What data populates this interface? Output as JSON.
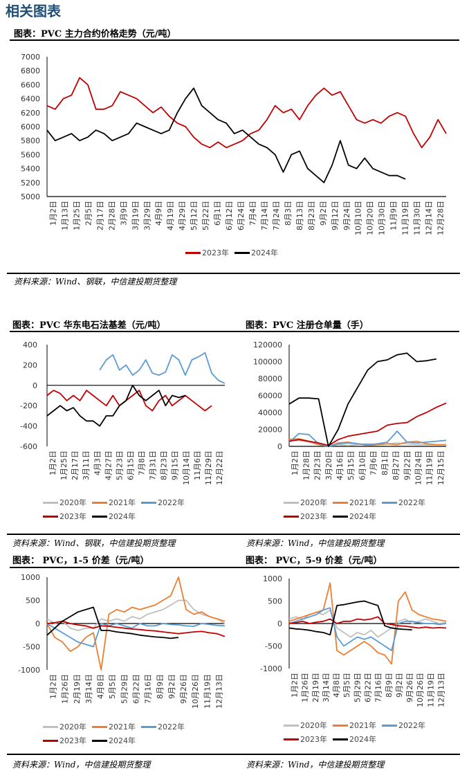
{
  "section_title": "相关图表",
  "colors": {
    "2020年": "#bfbfbf",
    "2021年": "#ed7d31",
    "2022年": "#5b9bd5",
    "2023年": "#c00000",
    "2024年": "#000000"
  },
  "charts": [
    {
      "title": "图表：PVC 主力合约价格走势（元/吨）",
      "source": "资料来源：Wind、钢联，中信建投期货整理",
      "legend": [
        "2023年",
        "2024年"
      ]
    },
    {
      "title": "图表：PVC 华东电石法基差（元/吨）",
      "source": "资料来源：Wind、钢联，中信建投期货整理",
      "legend": [
        "2020年",
        "2021年",
        "2022年",
        "2023年",
        "2024年"
      ]
    },
    {
      "title": "图表：PVC 注册仓单量（手）",
      "source": "资料来源：Wind，中信建投期货整理",
      "legend": [
        "2020年",
        "2021年",
        "2022年",
        "2023年",
        "2024年"
      ]
    },
    {
      "title": "图表： PVC，1-5 价差（元/吨）",
      "source": "资料来源：Wind，中信建投期货整理",
      "legend": [
        "2020年",
        "2021年",
        "2022年",
        "2023年",
        "2024年"
      ]
    },
    {
      "title": "图表： PVC，5-9 价差（元/吨）",
      "source": "资料来源：Wind，中信建投期货整理",
      "legend": [
        "2020年",
        "2021年",
        "2022年",
        "2023年",
        "2024年"
      ]
    }
  ],
  "chart_data": [
    {
      "type": "line",
      "ylim": [
        5000,
        7000
      ],
      "yticks": [
        5000,
        5200,
        5400,
        5600,
        5800,
        6000,
        6200,
        6400,
        6600,
        6800,
        7000
      ],
      "xticks": [
        "1月2日",
        "1月13日",
        "1月25日",
        "2月5日",
        "2月17日",
        "2月28日",
        "3月9日",
        "3月19日",
        "3月29日",
        "4月9日",
        "4月19日",
        "4月29日",
        "5月12日",
        "5月22日",
        "6月1日",
        "6月12日",
        "6月24日",
        "7月4日",
        "7月14日",
        "7月24日",
        "8月3日",
        "8月13日",
        "8月23日",
        "9月2日",
        "9月12日",
        "9月24日",
        "10月10日",
        "10月20日",
        "10月30日",
        "11月9日",
        "11月19日",
        "11月30日",
        "12月14日",
        "12月28日"
      ],
      "series": [
        {
          "name": "2023年",
          "values": [
            6300,
            6250,
            6400,
            6450,
            6700,
            6600,
            6250,
            6250,
            6300,
            6500,
            6450,
            6400,
            6300,
            6200,
            6280,
            6150,
            6050,
            6000,
            5850,
            5750,
            5700,
            5780,
            5700,
            5750,
            5800,
            5900,
            5950,
            6100,
            6300,
            6200,
            6250,
            6100,
            6300,
            6450,
            6550,
            6450,
            6500,
            6300,
            6100,
            6050,
            6100,
            6050,
            6150,
            6200,
            6150,
            5900,
            5700,
            5850,
            6100,
            5900
          ]
        },
        {
          "name": "2024年",
          "values": [
            5950,
            5800,
            5850,
            5900,
            5800,
            5850,
            5950,
            5900,
            5800,
            5850,
            5900,
            6050,
            6000,
            5950,
            5900,
            5950,
            6200,
            6400,
            6550,
            6300,
            6200,
            6100,
            6050,
            5900,
            5950,
            5850,
            5750,
            5700,
            5600,
            5350,
            5600,
            5650,
            5400,
            5300,
            5200,
            5450,
            5800,
            5450,
            5400,
            5550,
            5400,
            5350,
            5300,
            5300,
            5250,
            null,
            null,
            null,
            null,
            null
          ]
        }
      ]
    },
    {
      "type": "line",
      "ylim": [
        -600,
        400
      ],
      "yticks": [
        -600,
        -400,
        -200,
        0,
        200,
        400
      ],
      "xticks": [
        "1月2日",
        "1月25日",
        "2月17日",
        "3月11日",
        "4月3日",
        "4月27日",
        "5月23日",
        "6月15日",
        "7月8日",
        "7月31日",
        "8月23日",
        "9月15日",
        "10月14日",
        "11月6日",
        "11月29日",
        "12月22日"
      ],
      "series": [
        {
          "name": "2020年",
          "values": []
        },
        {
          "name": "2021年",
          "values": []
        },
        {
          "name": "2022年",
          "values": [
            null,
            null,
            null,
            null,
            null,
            null,
            null,
            null,
            150,
            250,
            300,
            150,
            200,
            100,
            150,
            250,
            120,
            100,
            130,
            300,
            250,
            100,
            250,
            280,
            320,
            120,
            50,
            20
          ]
        },
        {
          "name": "2023年",
          "values": [
            -100,
            -50,
            -80,
            -150,
            -100,
            -150,
            -50,
            -100,
            -150,
            -200,
            -100,
            -200,
            -150,
            -100,
            -50,
            -200,
            -250,
            -150,
            -100,
            -200,
            -150,
            -100,
            -150,
            -200,
            -250,
            -200,
            null,
            null
          ]
        },
        {
          "name": "2024年",
          "values": [
            -300,
            -250,
            -200,
            -250,
            -220,
            -300,
            -350,
            -350,
            -400,
            -300,
            -300,
            -200,
            -150,
            0,
            -100,
            -150,
            -100,
            -50,
            -200,
            -100,
            -120,
            -100,
            null,
            null,
            null,
            null,
            null,
            null
          ]
        }
      ]
    },
    {
      "type": "line",
      "ylim": [
        0,
        120000
      ],
      "yticks": [
        0,
        20000,
        40000,
        60000,
        80000,
        100000,
        120000
      ],
      "xticks": [
        "1月2日",
        "1月28日",
        "2月23日",
        "3月20日",
        "4月16日",
        "5月15日",
        "6月10日",
        "7月6日",
        "8月1日",
        "8月27日",
        "9月22日",
        "10月24日",
        "11月19日",
        "12月15日"
      ],
      "series": [
        {
          "name": "2020年",
          "values": [
            8000,
            7000,
            5000,
            2000,
            0,
            2000,
            1000,
            2000,
            3000,
            2000,
            3000,
            4000,
            3000,
            2000,
            2000,
            2000,
            null
          ]
        },
        {
          "name": "2021年",
          "values": [
            8000,
            9000,
            6000,
            2000,
            0,
            4000,
            5000,
            3000,
            1000,
            2000,
            3000,
            2000,
            5000,
            6000,
            3000,
            2000,
            2000
          ]
        },
        {
          "name": "2022年",
          "values": [
            5000,
            15000,
            14000,
            3000,
            0,
            3000,
            4000,
            3000,
            2000,
            3000,
            5000,
            18000,
            5000,
            4000,
            5000,
            6000,
            7000
          ]
        },
        {
          "name": "2023年",
          "values": [
            6000,
            8000,
            6000,
            4000,
            1000,
            8000,
            12000,
            14000,
            16000,
            18000,
            25000,
            27000,
            28000,
            35000,
            40000,
            46000,
            51000
          ]
        },
        {
          "name": "2024年",
          "values": [
            50000,
            57000,
            57000,
            56000,
            0,
            20000,
            50000,
            70000,
            90000,
            100000,
            102000,
            108000,
            110000,
            100000,
            101000,
            103000,
            null
          ]
        }
      ]
    },
    {
      "type": "line",
      "ylim": [
        -1000,
        1000
      ],
      "yticks": [
        -1000,
        -500,
        0,
        500,
        1000
      ],
      "xticks": [
        "1月2日",
        "1月26日",
        "2月19日",
        "3月14日",
        "4月8日",
        "5月5日",
        "5月29日",
        "6月22日",
        "7月16日",
        "8月9日",
        "9月2日",
        "9月26日",
        "10月26日",
        "11月19日",
        "12月13日"
      ],
      "series": [
        {
          "name": "2020年",
          "values": [
            100,
            0,
            50,
            -100,
            -150,
            -100,
            -100,
            100,
            50,
            100,
            50,
            150,
            100,
            200,
            250,
            300,
            400,
            500,
            500,
            300,
            200,
            150,
            100,
            0
          ]
        },
        {
          "name": "2021年",
          "values": [
            0,
            -300,
            -400,
            -600,
            -500,
            -300,
            -200,
            -1000,
            200,
            300,
            250,
            350,
            300,
            350,
            400,
            500,
            600,
            1000,
            300,
            200,
            250,
            150,
            100,
            50
          ]
        },
        {
          "name": "2022年",
          "values": [
            0,
            -100,
            -200,
            -300,
            -400,
            -450,
            -500,
            0,
            -50,
            0,
            -50,
            -100,
            0,
            -50,
            -50,
            0,
            -20,
            -30,
            -50,
            -60,
            0,
            -20,
            -40,
            -50
          ]
        },
        {
          "name": "2023年",
          "values": [
            0,
            20,
            50,
            0,
            -30,
            -50,
            -100,
            -50,
            -60,
            -80,
            -100,
            -120,
            -130,
            -150,
            -160,
            -180,
            -200,
            -220,
            -200,
            -180,
            -170,
            -200,
            -220,
            -280
          ]
        },
        {
          "name": "2024年",
          "values": [
            -250,
            -100,
            50,
            150,
            250,
            300,
            350,
            -150,
            -150,
            -180,
            -200,
            -220,
            -250,
            -270,
            -290,
            -300,
            -320,
            -300,
            null,
            null,
            null,
            null,
            null,
            null
          ]
        }
      ]
    },
    {
      "type": "line",
      "ylim": [
        -1000,
        1000
      ],
      "yticks": [
        -1000,
        -500,
        0,
        500,
        1000
      ],
      "xticks": [
        "1月2日",
        "1月26日",
        "2月19日",
        "3月14日",
        "4月8日",
        "5月5日",
        "5月29日",
        "6月22日",
        "7月16日",
        "8月9日",
        "9月2日",
        "9月26日",
        "10月26日",
        "11月19日",
        "12月13日"
      ],
      "series": [
        {
          "name": "2020年",
          "values": [
            100,
            150,
            100,
            200,
            250,
            200,
            300,
            -100,
            -200,
            -300,
            -200,
            -250,
            -150,
            -300,
            -200,
            -100,
            50,
            100,
            0,
            50,
            100,
            50,
            0,
            20
          ]
        },
        {
          "name": "2021年",
          "values": [
            50,
            100,
            150,
            200,
            250,
            300,
            900,
            -600,
            -700,
            -600,
            -500,
            -400,
            -500,
            -650,
            -700,
            -900,
            500,
            700,
            300,
            200,
            150,
            100,
            80,
            50
          ]
        },
        {
          "name": "2022年",
          "values": [
            0,
            50,
            100,
            150,
            200,
            300,
            350,
            -300,
            -500,
            -400,
            -300,
            -350,
            -300,
            -400,
            -500,
            -600,
            0,
            50,
            50,
            20,
            0,
            0,
            -20,
            0
          ]
        },
        {
          "name": "2023年",
          "values": [
            0,
            20,
            50,
            0,
            30,
            50,
            100,
            0,
            50,
            50,
            100,
            80,
            100,
            150,
            0,
            -20,
            -50,
            -60,
            -80,
            -100,
            -80,
            -100,
            -90,
            -100
          ]
        },
        {
          "name": "2024年",
          "values": [
            -100,
            -120,
            -130,
            -150,
            -180,
            -200,
            -250,
            400,
            420,
            450,
            480,
            500,
            450,
            400,
            -50,
            -100,
            -120,
            -130,
            -140,
            null,
            null,
            null,
            null,
            null
          ]
        }
      ]
    }
  ]
}
